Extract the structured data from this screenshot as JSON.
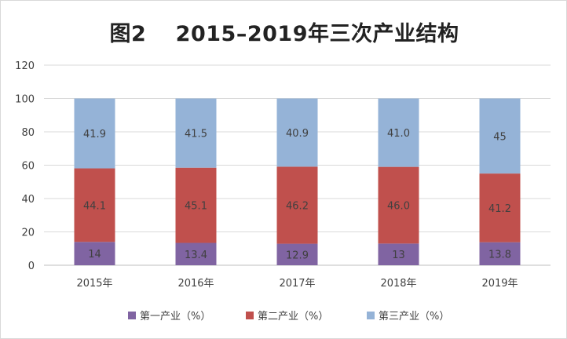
{
  "chart_data": {
    "type": "bar",
    "stacked": true,
    "title": "图2　 2015–2019年三次产业结构",
    "categories": [
      "2015年",
      "2016年",
      "2017年",
      "2018年",
      "2019年"
    ],
    "series": [
      {
        "name": "第一产业（%）",
        "color": "#8064a2",
        "values": [
          14,
          13.4,
          12.9,
          13,
          13.8
        ],
        "labels": [
          "14",
          "13.4",
          "12.9",
          "13",
          "13.8"
        ]
      },
      {
        "name": "第二产业（%）",
        "color": "#c0504d",
        "values": [
          44.1,
          45.1,
          46.2,
          46.0,
          41.2
        ],
        "labels": [
          "44.1",
          "45.1",
          "46.2",
          "46.0",
          "41.2"
        ]
      },
      {
        "name": "第三产业（%）",
        "color": "#95b3d7",
        "values": [
          41.9,
          41.5,
          40.9,
          41.0,
          45
        ],
        "labels": [
          "41.9",
          "41.5",
          "40.9",
          "41.0",
          "45"
        ]
      }
    ],
    "ylim": [
      0,
      120
    ],
    "yticks": [
      "0",
      "20",
      "40",
      "60",
      "80",
      "100",
      "120"
    ],
    "grid": true,
    "legend_position": "bottom"
  }
}
